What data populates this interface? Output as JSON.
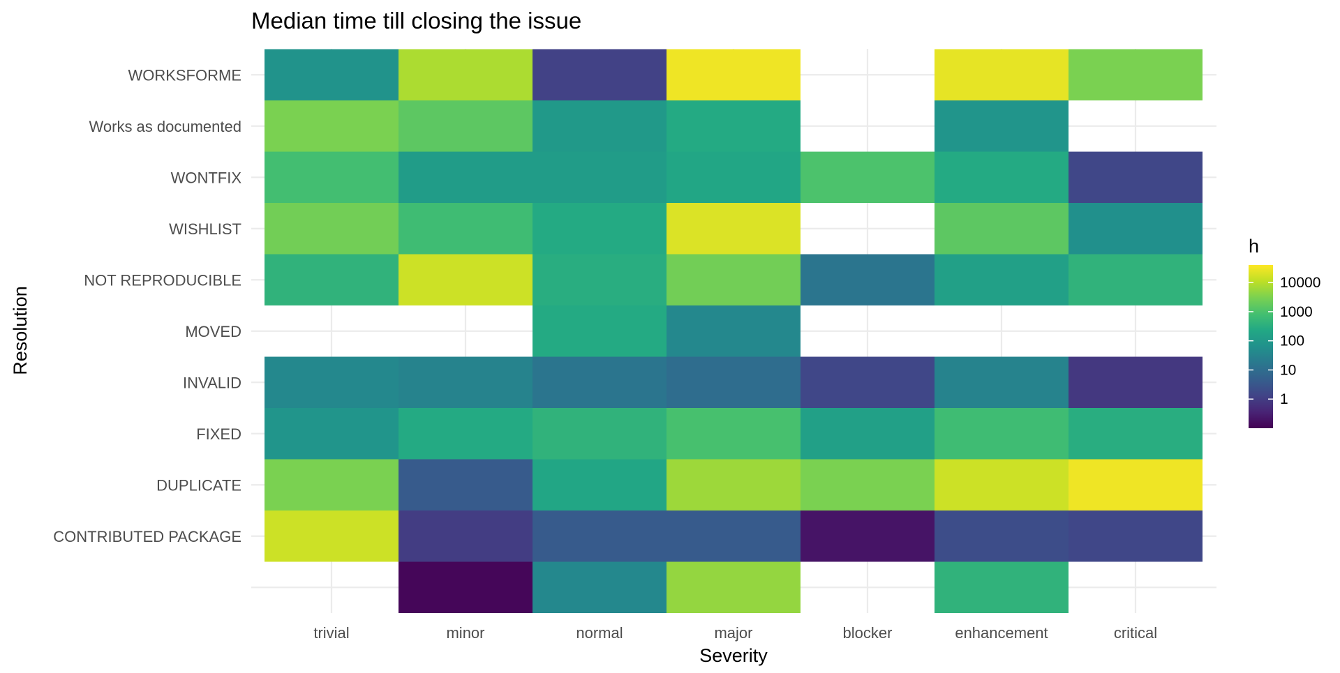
{
  "chart_data": {
    "type": "heatmap",
    "title": "Median time till closing the issue",
    "xlabel": "Severity",
    "ylabel": "Resolution",
    "x_categories": [
      "trivial",
      "minor",
      "normal",
      "major",
      "blocker",
      "enhancement",
      "critical"
    ],
    "y_categories": [
      "",
      "CONTRIBUTED PACKAGE",
      "DUPLICATE",
      "FIXED",
      "INVALID",
      "MOVED",
      "NOT REPRODUCIBLE",
      "WISHLIST",
      "WONTFIX",
      "Works as documented",
      "WORKSFORME"
    ],
    "scale": "log10",
    "colormap": "viridis",
    "grid": true,
    "legend": {
      "title": "h",
      "position": "right",
      "ticks": [
        "1",
        "10",
        "100",
        "1000",
        "10000"
      ],
      "tick_values": [
        1,
        10,
        100,
        1000,
        10000
      ],
      "range": [
        0.1,
        40000
      ]
    },
    "cells": [
      {
        "x": "minor",
        "y": "",
        "value": 0.12
      },
      {
        "x": "normal",
        "y": "",
        "value": 40
      },
      {
        "x": "major",
        "y": "",
        "value": 5000
      },
      {
        "x": "enhancement",
        "y": "",
        "value": 400
      },
      {
        "x": "trivial",
        "y": "CONTRIBUTED PACKAGE",
        "value": 15000
      },
      {
        "x": "minor",
        "y": "CONTRIBUTED PACKAGE",
        "value": 1
      },
      {
        "x": "normal",
        "y": "CONTRIBUTED PACKAGE",
        "value": 4
      },
      {
        "x": "major",
        "y": "CONTRIBUTED PACKAGE",
        "value": 4
      },
      {
        "x": "blocker",
        "y": "CONTRIBUTED PACKAGE",
        "value": 0.2
      },
      {
        "x": "enhancement",
        "y": "CONTRIBUTED PACKAGE",
        "value": 2
      },
      {
        "x": "critical",
        "y": "CONTRIBUTED PACKAGE",
        "value": 1.5
      },
      {
        "x": "trivial",
        "y": "DUPLICATE",
        "value": 3000
      },
      {
        "x": "minor",
        "y": "DUPLICATE",
        "value": 4
      },
      {
        "x": "normal",
        "y": "DUPLICATE",
        "value": 200
      },
      {
        "x": "major",
        "y": "DUPLICATE",
        "value": 6000
      },
      {
        "x": "blocker",
        "y": "DUPLICATE",
        "value": 3000
      },
      {
        "x": "enhancement",
        "y": "DUPLICATE",
        "value": 15000
      },
      {
        "x": "critical",
        "y": "DUPLICATE",
        "value": 30000
      },
      {
        "x": "trivial",
        "y": "FIXED",
        "value": 80
      },
      {
        "x": "minor",
        "y": "FIXED",
        "value": 250
      },
      {
        "x": "normal",
        "y": "FIXED",
        "value": 400
      },
      {
        "x": "major",
        "y": "FIXED",
        "value": 900
      },
      {
        "x": "blocker",
        "y": "FIXED",
        "value": 150
      },
      {
        "x": "enhancement",
        "y": "FIXED",
        "value": 700
      },
      {
        "x": "critical",
        "y": "FIXED",
        "value": 300
      },
      {
        "x": "trivial",
        "y": "INVALID",
        "value": 40
      },
      {
        "x": "minor",
        "y": "INVALID",
        "value": 30
      },
      {
        "x": "normal",
        "y": "INVALID",
        "value": 15
      },
      {
        "x": "major",
        "y": "INVALID",
        "value": 10
      },
      {
        "x": "blocker",
        "y": "INVALID",
        "value": 1.5
      },
      {
        "x": "enhancement",
        "y": "INVALID",
        "value": 30
      },
      {
        "x": "critical",
        "y": "INVALID",
        "value": 0.8
      },
      {
        "x": "normal",
        "y": "MOVED",
        "value": 250
      },
      {
        "x": "major",
        "y": "MOVED",
        "value": 40
      },
      {
        "x": "trivial",
        "y": "NOT REPRODUCIBLE",
        "value": 400
      },
      {
        "x": "minor",
        "y": "NOT REPRODUCIBLE",
        "value": 15000
      },
      {
        "x": "normal",
        "y": "NOT REPRODUCIBLE",
        "value": 300
      },
      {
        "x": "major",
        "y": "NOT REPRODUCIBLE",
        "value": 2500
      },
      {
        "x": "blocker",
        "y": "NOT REPRODUCIBLE",
        "value": 15
      },
      {
        "x": "enhancement",
        "y": "NOT REPRODUCIBLE",
        "value": 150
      },
      {
        "x": "critical",
        "y": "NOT REPRODUCIBLE",
        "value": 400
      },
      {
        "x": "trivial",
        "y": "WISHLIST",
        "value": 2500
      },
      {
        "x": "minor",
        "y": "WISHLIST",
        "value": 700
      },
      {
        "x": "normal",
        "y": "WISHLIST",
        "value": 250
      },
      {
        "x": "major",
        "y": "WISHLIST",
        "value": 20000
      },
      {
        "x": "enhancement",
        "y": "WISHLIST",
        "value": 1500
      },
      {
        "x": "critical",
        "y": "WISHLIST",
        "value": 60
      },
      {
        "x": "trivial",
        "y": "WONTFIX",
        "value": 800
      },
      {
        "x": "minor",
        "y": "WONTFIX",
        "value": 120
      },
      {
        "x": "normal",
        "y": "WONTFIX",
        "value": 120
      },
      {
        "x": "major",
        "y": "WONTFIX",
        "value": 200
      },
      {
        "x": "blocker",
        "y": "WONTFIX",
        "value": 1000
      },
      {
        "x": "enhancement",
        "y": "WONTFIX",
        "value": 250
      },
      {
        "x": "critical",
        "y": "WONTFIX",
        "value": 1.5
      },
      {
        "x": "trivial",
        "y": "Works as documented",
        "value": 3000
      },
      {
        "x": "minor",
        "y": "Works as documented",
        "value": 1500
      },
      {
        "x": "normal",
        "y": "Works as documented",
        "value": 100
      },
      {
        "x": "major",
        "y": "Works as documented",
        "value": 250
      },
      {
        "x": "enhancement",
        "y": "Works as documented",
        "value": 80
      },
      {
        "x": "trivial",
        "y": "WORKSFORME",
        "value": 70
      },
      {
        "x": "minor",
        "y": "WORKSFORME",
        "value": 8000
      },
      {
        "x": "normal",
        "y": "WORKSFORME",
        "value": 1.2
      },
      {
        "x": "major",
        "y": "WORKSFORME",
        "value": 30000
      },
      {
        "x": "enhancement",
        "y": "WORKSFORME",
        "value": 25000
      },
      {
        "x": "critical",
        "y": "WORKSFORME",
        "value": 3000
      }
    ]
  }
}
